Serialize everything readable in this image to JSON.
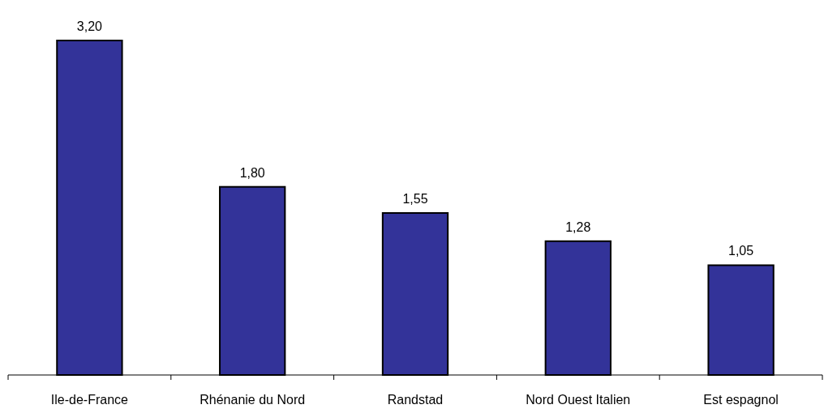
{
  "chart_data": {
    "type": "bar",
    "categories": [
      "Ile-de-France",
      "Rhénanie du Nord",
      "Randstad",
      "Nord Ouest Italien",
      "Est espagnol"
    ],
    "values": [
      3.2,
      1.8,
      1.55,
      1.28,
      1.05
    ],
    "value_labels": [
      "3,20",
      "1,80",
      "1,55",
      "1,28",
      "1,05"
    ],
    "color": "#333399"
  }
}
